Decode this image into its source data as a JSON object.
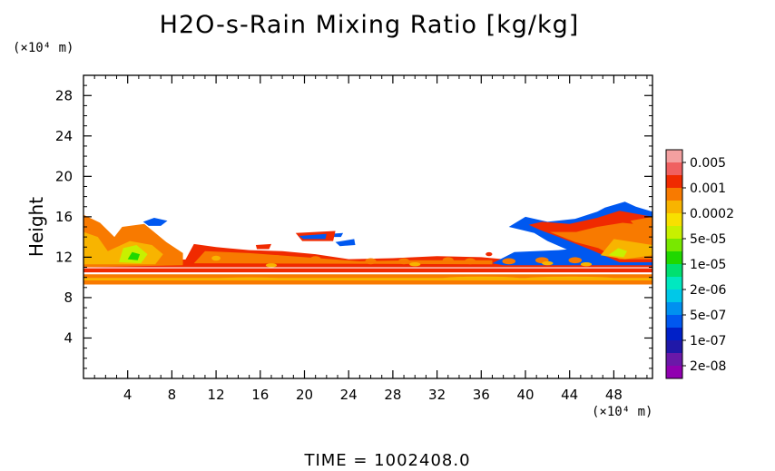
{
  "chart_data": {
    "type": "heatmap",
    "title": "H2O-s-Rain Mixing Ratio [kg/kg]",
    "xlabel": "",
    "ylabel": "Height",
    "x_unit": "(×10⁴ m)",
    "y_unit": "(×10⁴ m)",
    "x_ticks": [
      4,
      8,
      12,
      16,
      20,
      24,
      28,
      32,
      36,
      40,
      44,
      48
    ],
    "y_ticks": [
      4,
      8,
      12,
      16,
      20,
      24,
      28
    ],
    "xlim": [
      0,
      51.5
    ],
    "ylim": [
      0,
      30
    ],
    "footer": "TIME  =  1002408.0",
    "colorbar": {
      "labels": [
        "0.005",
        "0.001",
        "0.0002",
        "5e-05",
        "1e-05",
        "2e-06",
        "5e-07",
        "1e-07",
        "2e-08"
      ],
      "colors": [
        "#f4a0a0",
        "#f06060",
        "#f02a00",
        "#f87a00",
        "#f8b400",
        "#f8e000",
        "#c8f000",
        "#78e800",
        "#20d800",
        "#00e070",
        "#00e8c0",
        "#00c8e8",
        "#0090f0",
        "#0058f0",
        "#0020c8",
        "#2018a8",
        "#6a18a8",
        "#9000b0"
      ]
    },
    "regions": [
      {
        "level": 4,
        "points": [
          [
            0,
            9.3
          ],
          [
            51.5,
            9.3
          ],
          [
            51.5,
            10.3
          ],
          [
            0,
            10.3
          ]
        ]
      },
      {
        "level": 3,
        "points": [
          [
            0,
            9.7
          ],
          [
            51.5,
            9.7
          ],
          [
            51.5,
            9.95
          ],
          [
            0,
            9.95
          ]
        ]
      },
      {
        "level": 5,
        "points": [
          [
            0,
            10.5
          ],
          [
            51.5,
            10.5
          ],
          [
            51.5,
            10.9
          ],
          [
            0,
            10.9
          ]
        ]
      },
      {
        "level": 5,
        "points": [
          [
            0,
            11.2
          ],
          [
            4,
            11.6
          ],
          [
            10,
            11.8
          ],
          [
            20,
            11.7
          ],
          [
            30,
            11.5
          ],
          [
            40,
            11.6
          ],
          [
            51.5,
            11.6
          ],
          [
            51.5,
            11.0
          ],
          [
            0,
            11.0
          ]
        ]
      },
      {
        "level": 4,
        "points": [
          [
            0,
            11
          ],
          [
            0,
            16.2
          ],
          [
            1.5,
            15.4
          ],
          [
            2.8,
            14
          ],
          [
            3.5,
            15
          ],
          [
            5.5,
            15.3
          ],
          [
            7.5,
            13.5
          ],
          [
            9,
            12.4
          ],
          [
            9,
            11.2
          ]
        ]
      },
      {
        "level": 3,
        "points": [
          [
            0,
            11.3
          ],
          [
            0,
            14.5
          ],
          [
            1.3,
            14
          ],
          [
            2.2,
            12.6
          ],
          [
            4.2,
            13.6
          ],
          [
            6.2,
            13.2
          ],
          [
            7.2,
            12.3
          ],
          [
            6.5,
            11.3
          ]
        ]
      },
      {
        "level": 2,
        "points": [
          [
            3.2,
            11.5
          ],
          [
            3.6,
            12.9
          ],
          [
            4.8,
            13.2
          ],
          [
            5.8,
            12.3
          ],
          [
            5.2,
            11.4
          ]
        ]
      },
      {
        "level": 1,
        "points": [
          [
            4,
            11.8
          ],
          [
            4.4,
            12.5
          ],
          [
            5.1,
            12.3
          ],
          [
            4.9,
            11.7
          ]
        ]
      },
      {
        "level": 6,
        "points": [
          [
            5.4,
            15.5
          ],
          [
            6.4,
            15.9
          ],
          [
            7.6,
            15.6
          ],
          [
            7,
            15.1
          ],
          [
            5.9,
            15.1
          ]
        ]
      },
      {
        "level": 6,
        "points": [
          [
            22.8,
            13.5
          ],
          [
            24.5,
            13.8
          ],
          [
            24.6,
            13.2
          ],
          [
            23.2,
            13.1
          ]
        ]
      },
      {
        "level": 6,
        "points": [
          [
            22.2,
            14.3
          ],
          [
            23.5,
            14.4
          ],
          [
            23.3,
            14.0
          ],
          [
            22.3,
            14.0
          ]
        ]
      },
      {
        "level": 5,
        "points": [
          [
            19.2,
            14.4
          ],
          [
            22.8,
            14.6
          ],
          [
            22.6,
            13.6
          ],
          [
            19.8,
            13.6
          ]
        ]
      },
      {
        "level": 6,
        "points": [
          [
            19.5,
            14.1
          ],
          [
            22,
            14.3
          ],
          [
            21.9,
            13.8
          ],
          [
            19.9,
            13.8
          ]
        ]
      },
      {
        "level": 5,
        "points": [
          [
            15.6,
            13.2
          ],
          [
            17,
            13.3
          ],
          [
            16.8,
            12.8
          ],
          [
            15.7,
            12.8
          ]
        ]
      },
      {
        "level": 5,
        "points": [
          [
            9,
            11.3
          ],
          [
            10,
            13.3
          ],
          [
            12,
            13
          ],
          [
            15,
            12.7
          ],
          [
            18,
            12.6
          ],
          [
            21,
            12.3
          ],
          [
            24,
            11.8
          ],
          [
            28,
            11.9
          ],
          [
            32,
            12.1
          ],
          [
            36,
            12.0
          ],
          [
            38,
            11.8
          ],
          [
            38,
            11.2
          ],
          [
            9,
            11.2
          ]
        ]
      },
      {
        "level": 4,
        "points": [
          [
            10,
            11.4
          ],
          [
            11,
            12.6
          ],
          [
            15,
            12.4
          ],
          [
            20,
            12.0
          ],
          [
            25,
            11.6
          ],
          [
            30,
            11.7
          ],
          [
            37,
            11.7
          ],
          [
            37,
            11.3
          ]
        ]
      },
      {
        "level": 6,
        "points": [
          [
            37,
            11.4
          ],
          [
            39,
            12.5
          ],
          [
            43,
            12.7
          ],
          [
            46,
            13
          ],
          [
            48,
            12.4
          ],
          [
            51.5,
            11.6
          ],
          [
            51.5,
            11.2
          ],
          [
            38,
            11.2
          ]
        ]
      },
      {
        "level": 6,
        "points": [
          [
            38.5,
            15.0
          ],
          [
            40,
            16.0
          ],
          [
            42,
            15.5
          ],
          [
            44.5,
            15.8
          ],
          [
            46.5,
            16.5
          ],
          [
            47.2,
            16.9
          ],
          [
            49,
            17.5
          ],
          [
            50,
            17
          ],
          [
            51.5,
            16.5
          ],
          [
            51.5,
            11.2
          ],
          [
            47,
            11.4
          ],
          [
            44.5,
            12.4
          ],
          [
            42,
            13.6
          ],
          [
            40.8,
            14.4
          ]
        ]
      },
      {
        "level": 5,
        "points": [
          [
            40.3,
            15.2
          ],
          [
            41.5,
            15.5
          ],
          [
            44,
            15.3
          ],
          [
            46.5,
            15.9
          ],
          [
            48.5,
            16.6
          ],
          [
            51.5,
            16.0
          ],
          [
            51.5,
            11.5
          ],
          [
            48.5,
            11.5
          ],
          [
            46,
            12.7
          ],
          [
            43,
            14.0
          ],
          [
            41.3,
            14.7
          ]
        ]
      },
      {
        "level": 4,
        "points": [
          [
            42.2,
            14.5
          ],
          [
            44.6,
            14.5
          ],
          [
            46.5,
            15.0
          ],
          [
            48.8,
            15.4
          ],
          [
            51.5,
            15.1
          ],
          [
            51.5,
            11.8
          ],
          [
            48.5,
            11.8
          ],
          [
            46.6,
            12.9
          ],
          [
            44.5,
            13.5
          ]
        ]
      },
      {
        "level": 3,
        "points": [
          [
            46.8,
            12.2
          ],
          [
            48,
            13.8
          ],
          [
            49.8,
            13.5
          ],
          [
            51.5,
            13.2
          ],
          [
            51.5,
            12.2
          ],
          [
            49,
            11.8
          ]
        ]
      },
      {
        "level": 2,
        "points": [
          [
            47.5,
            12.2
          ],
          [
            48.4,
            12.9
          ],
          [
            49.2,
            12.6
          ],
          [
            48.9,
            12.0
          ]
        ]
      },
      {
        "level": 4,
        "points": [
          [
            49.5,
            15.6
          ],
          [
            51.5,
            16.0
          ],
          [
            51.5,
            14.6
          ],
          [
            50.2,
            14.7
          ]
        ]
      }
    ],
    "blobs": [
      {
        "level": 4,
        "cx": 14,
        "cy": 12.0,
        "rx": 0.5,
        "ry": 0.3
      },
      {
        "level": 4,
        "cx": 17.5,
        "cy": 11.9,
        "rx": 0.5,
        "ry": 0.3
      },
      {
        "level": 4,
        "cx": 21,
        "cy": 11.8,
        "rx": 0.5,
        "ry": 0.3
      },
      {
        "level": 4,
        "cx": 26,
        "cy": 11.6,
        "rx": 0.5,
        "ry": 0.3
      },
      {
        "level": 4,
        "cx": 29,
        "cy": 11.6,
        "rx": 0.5,
        "ry": 0.3
      },
      {
        "level": 4,
        "cx": 33,
        "cy": 11.7,
        "rx": 0.5,
        "ry": 0.3
      },
      {
        "level": 4,
        "cx": 35,
        "cy": 11.6,
        "rx": 0.5,
        "ry": 0.3
      },
      {
        "level": 4,
        "cx": 38.5,
        "cy": 11.6,
        "rx": 0.6,
        "ry": 0.3
      },
      {
        "level": 4,
        "cx": 41.5,
        "cy": 11.7,
        "rx": 0.6,
        "ry": 0.3
      },
      {
        "level": 4,
        "cx": 44.5,
        "cy": 11.7,
        "rx": 0.6,
        "ry": 0.3
      },
      {
        "level": 3,
        "cx": 12,
        "cy": 11.9,
        "rx": 0.4,
        "ry": 0.25
      },
      {
        "level": 3,
        "cx": 17,
        "cy": 11.2,
        "rx": 0.5,
        "ry": 0.2
      },
      {
        "level": 3,
        "cx": 30,
        "cy": 11.3,
        "rx": 0.5,
        "ry": 0.2
      },
      {
        "level": 3,
        "cx": 42,
        "cy": 11.4,
        "rx": 0.5,
        "ry": 0.2
      },
      {
        "level": 3,
        "cx": 45.5,
        "cy": 11.3,
        "rx": 0.5,
        "ry": 0.2
      },
      {
        "level": 3,
        "cx": 36,
        "cy": 9.9,
        "rx": 3.5,
        "ry": 0.18
      },
      {
        "level": 3,
        "cx": 44,
        "cy": 9.9,
        "rx": 4,
        "ry": 0.18
      },
      {
        "level": 3,
        "cx": 15,
        "cy": 9.85,
        "rx": 3,
        "ry": 0.15
      },
      {
        "level": 5,
        "cx": 36.7,
        "cy": 12.3,
        "rx": 0.3,
        "ry": 0.2
      }
    ]
  }
}
